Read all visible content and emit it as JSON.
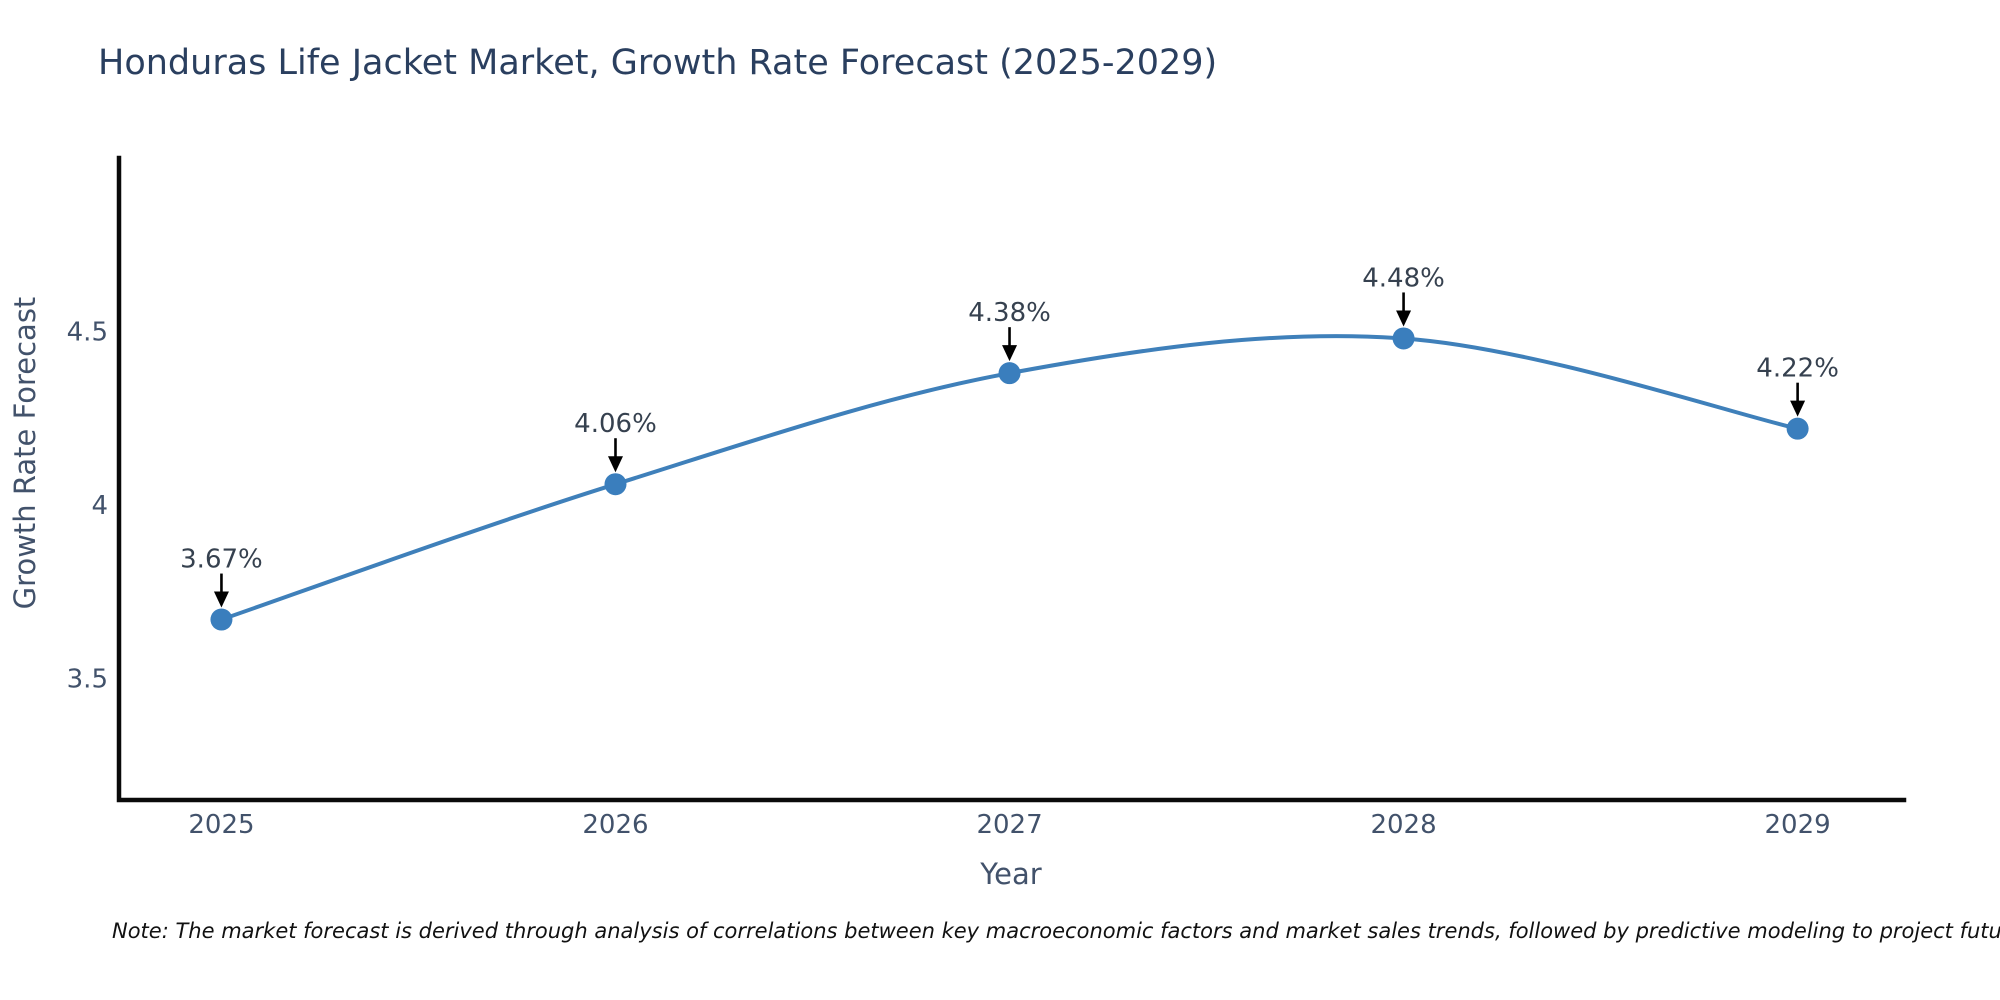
{
  "chart_data": {
    "type": "line",
    "title": "Honduras Life Jacket Market, Growth Rate Forecast (2025-2029)",
    "xlabel": "Year",
    "ylabel": "Growth Rate Forecast",
    "x": [
      2025,
      2026,
      2027,
      2028,
      2029
    ],
    "series": [
      {
        "name": "Growth Rate Forecast (%)",
        "values": [
          3.67,
          4.06,
          4.38,
          4.48,
          4.22
        ]
      }
    ],
    "point_labels": [
      "3.67%",
      "4.06%",
      "4.38%",
      "4.48%",
      "4.22%"
    ],
    "xticks": [
      2025,
      2026,
      2027,
      2028,
      2029
    ],
    "xtick_labels": [
      "2025",
      "2026",
      "2027",
      "2028",
      "2029"
    ],
    "yticks": [
      3.5,
      4,
      4.5
    ],
    "ytick_labels": [
      "3.5",
      "4",
      "4.5"
    ],
    "xlim": [
      2024.74,
      2029.27
    ],
    "ylim": [
      3.15,
      5.0
    ],
    "grid": false,
    "legend": false,
    "line_shape": "spline",
    "annotation_style": "down-arrow",
    "colors": {
      "line": "#3f80ba",
      "marker": "#3a7ebd",
      "arrow": "#000000",
      "spine": "#0a0a0a",
      "title": "#2a3f5f",
      "tick": "#42526b",
      "annotation": "#36414f",
      "note": "#111111"
    }
  },
  "note": {
    "text": "Note: The market forecast is derived through analysis of correlations between key macroeconomic factors and market sales trends, followed by predictive modeling to project future sales"
  }
}
